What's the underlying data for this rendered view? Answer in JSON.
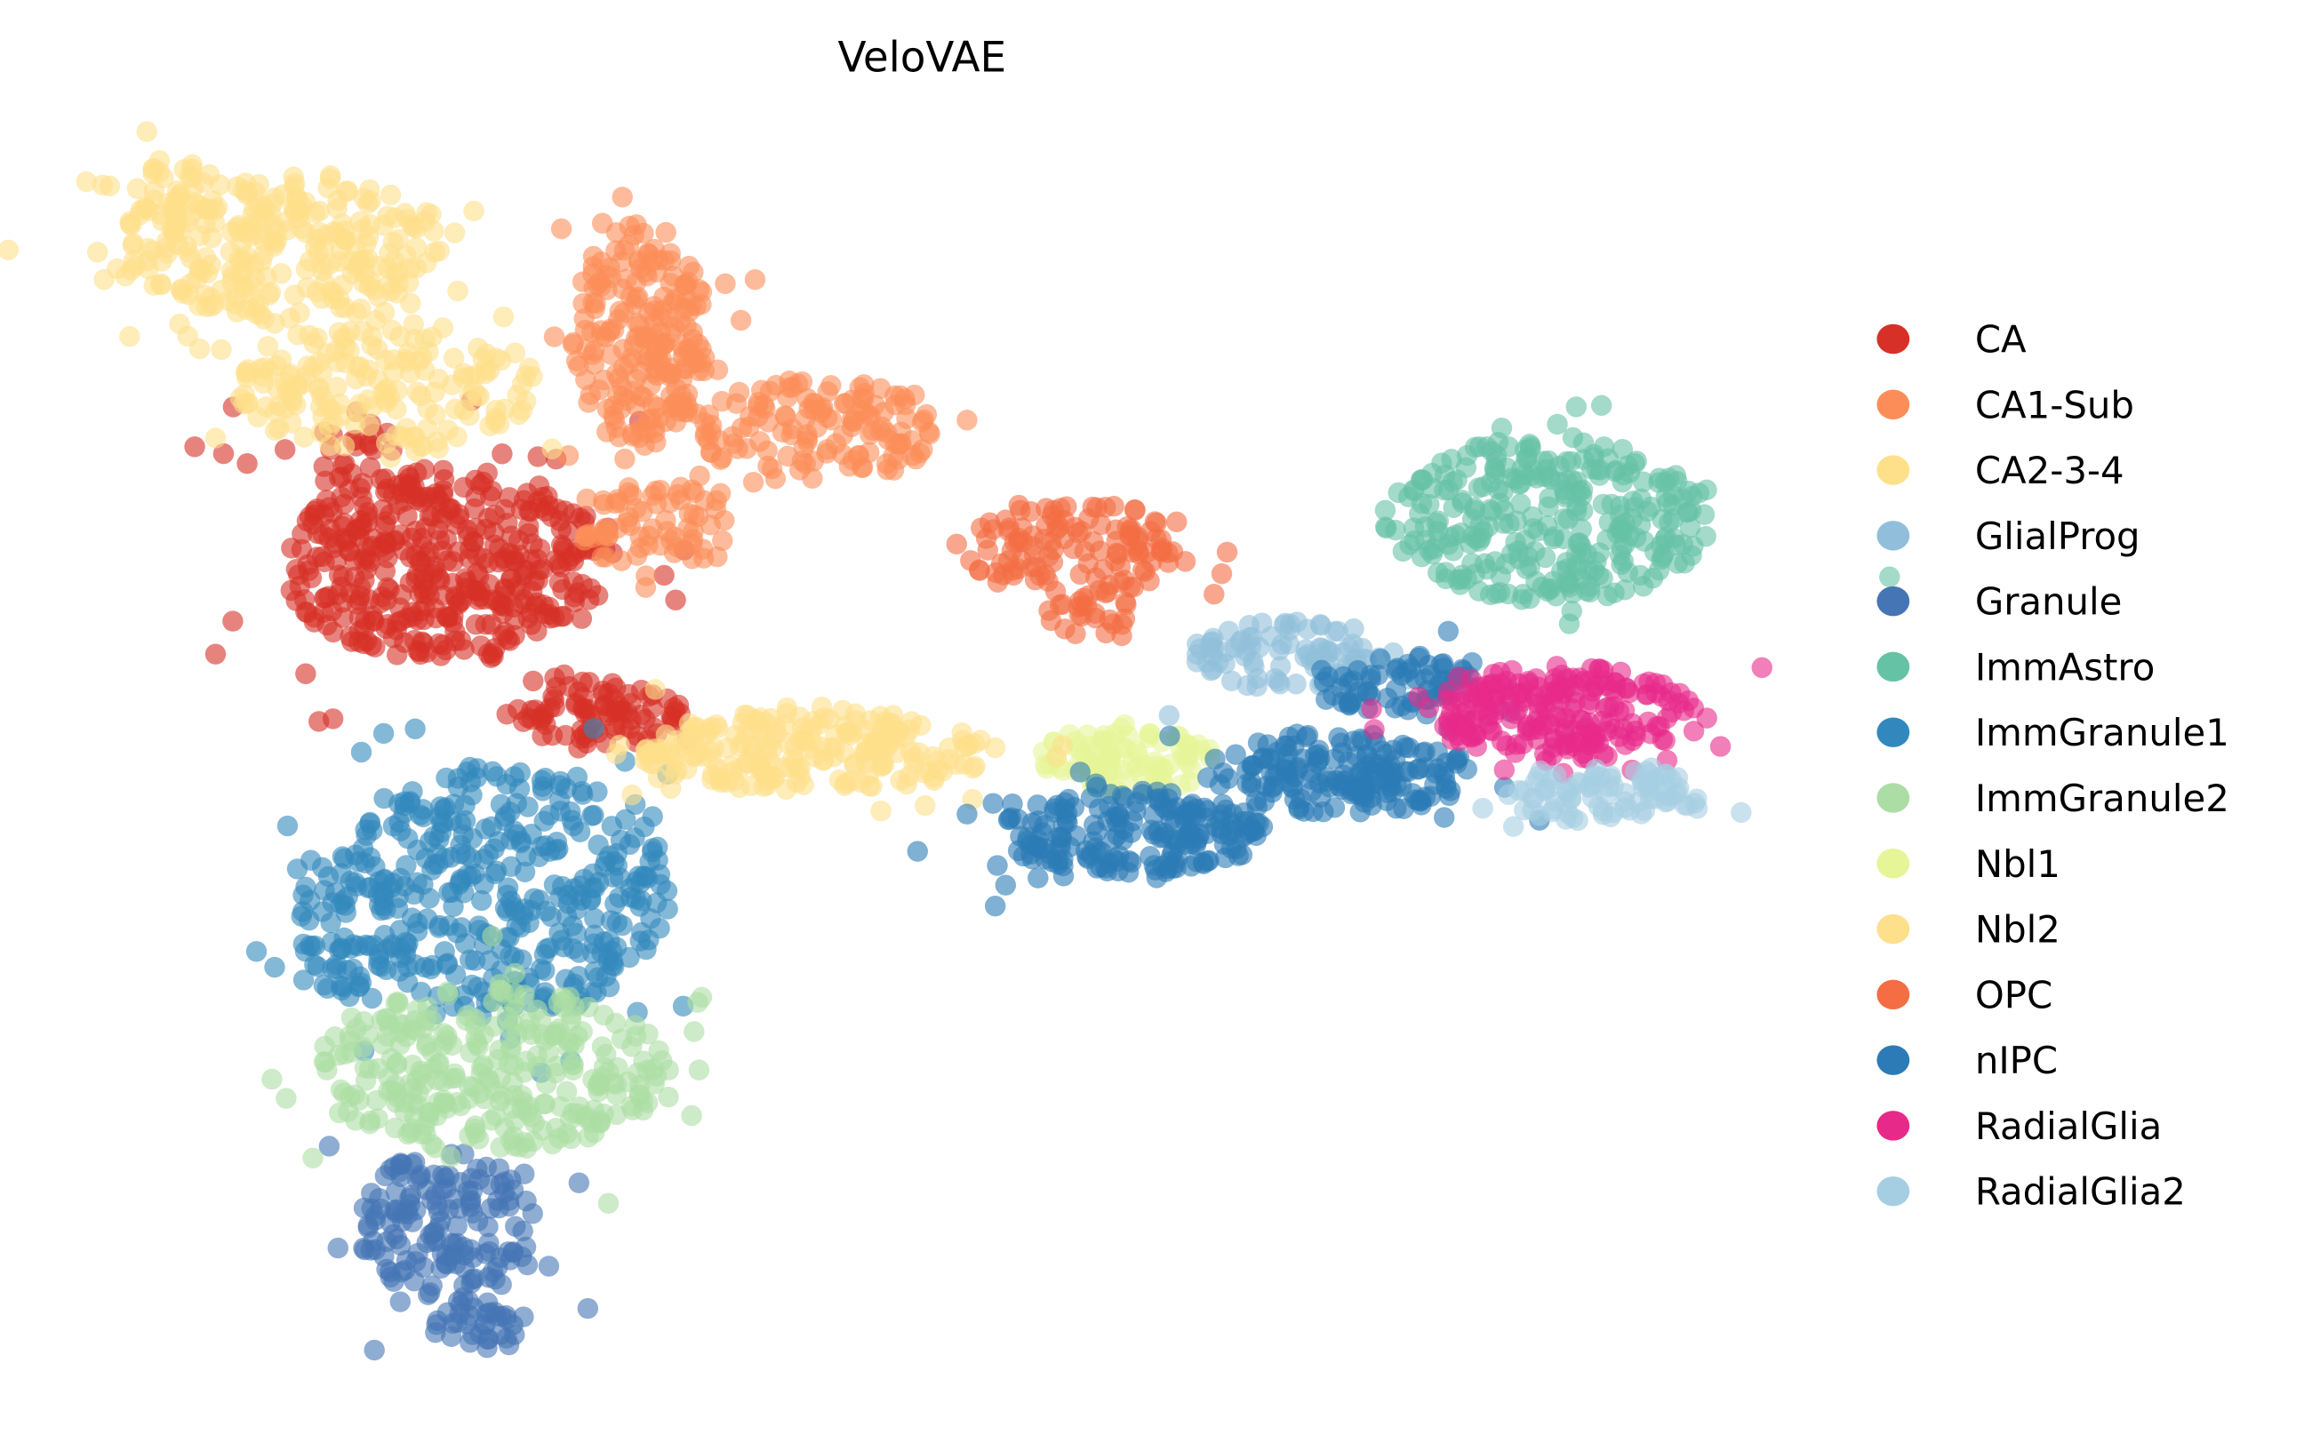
{
  "chart_data": {
    "type": "scatter",
    "title": "VeloVAE",
    "xlabel": "",
    "ylabel": "",
    "xlim": [
      0,
      110
    ],
    "ylim": [
      0,
      85
    ],
    "grid": false,
    "axes_visible": false,
    "legend_placement": "right",
    "point_opacity": 0.6,
    "note": "Embedding clusters summarised as point clouds: center (x,y), spread (sx,sy) in embedding units, and relative point count n",
    "series": [
      {
        "name": "CA",
        "color": "#d73027",
        "blobs": [
          {
            "x": 23,
            "y": 54.5,
            "sx": 11,
            "sy": 6.5,
            "n": 420
          },
          {
            "x": 33,
            "y": 44.5,
            "sx": 6,
            "sy": 2.2,
            "n": 90
          },
          {
            "x": 17,
            "y": 62,
            "sx": 3,
            "sy": 3,
            "n": 25
          }
        ]
      },
      {
        "name": "CA1-Sub",
        "color": "#fc8d59",
        "blobs": [
          {
            "x": 36,
            "y": 70,
            "sx": 4.5,
            "sy": 7.5,
            "n": 220
          },
          {
            "x": 48,
            "y": 63.5,
            "sx": 8,
            "sy": 3.5,
            "n": 140
          },
          {
            "x": 37,
            "y": 57,
            "sx": 5,
            "sy": 3,
            "n": 70
          }
        ]
      },
      {
        "name": "CA2-3-4",
        "color": "#fee08b",
        "blobs": [
          {
            "x": 12,
            "y": 76,
            "sx": 11,
            "sy": 5,
            "n": 260
          },
          {
            "x": 19,
            "y": 66.5,
            "sx": 10,
            "sy": 4.5,
            "n": 180
          },
          {
            "x": 5,
            "y": 79,
            "sx": 3,
            "sy": 3,
            "n": 40
          }
        ]
      },
      {
        "name": "GlialProg",
        "color": "#91bfdb",
        "blobs": [
          {
            "x": 79,
            "y": 48.5,
            "sx": 6,
            "sy": 2.3,
            "n": 90
          }
        ]
      },
      {
        "name": "Granule",
        "color": "#4575b4",
        "blobs": [
          {
            "x": 23,
            "y": 10,
            "sx": 6,
            "sy": 5,
            "n": 160
          },
          {
            "x": 25,
            "y": 3.5,
            "sx": 3,
            "sy": 2,
            "n": 35
          }
        ]
      },
      {
        "name": "ImmAstro",
        "color": "#66c2a5",
        "blobs": [
          {
            "x": 97,
            "y": 57.5,
            "sx": 11,
            "sy": 5.5,
            "n": 300
          }
        ]
      },
      {
        "name": "ImmGranule1",
        "color": "#3288bd",
        "blobs": [
          {
            "x": 27,
            "y": 32.5,
            "sx": 11,
            "sy": 8.5,
            "n": 380
          },
          {
            "x": 16,
            "y": 30.5,
            "sx": 3,
            "sy": 5.5,
            "n": 60
          }
        ]
      },
      {
        "name": "ImmGranule2",
        "color": "#abdda4",
        "blobs": [
          {
            "x": 26,
            "y": 20.5,
            "sx": 12,
            "sy": 5.5,
            "n": 300
          }
        ]
      },
      {
        "name": "Nbl1",
        "color": "#e6f598",
        "blobs": [
          {
            "x": 69,
            "y": 41.5,
            "sx": 6,
            "sy": 2.3,
            "n": 90
          }
        ]
      },
      {
        "name": "Nbl2",
        "color": "#fedf8b",
        "blobs": [
          {
            "x": 48,
            "y": 42,
            "sx": 12,
            "sy": 2.8,
            "n": 230
          }
        ]
      },
      {
        "name": "OPC",
        "color": "#f46d43",
        "blobs": [
          {
            "x": 65,
            "y": 55.5,
            "sx": 7,
            "sy": 3.5,
            "n": 120
          },
          {
            "x": 66,
            "y": 51.5,
            "sx": 3,
            "sy": 2,
            "n": 25
          }
        ]
      },
      {
        "name": "nIPC",
        "color": "#2c7bb6",
        "blobs": [
          {
            "x": 69,
            "y": 36.5,
            "sx": 9,
            "sy": 2.8,
            "n": 200
          },
          {
            "x": 83,
            "y": 40.5,
            "sx": 9,
            "sy": 2.8,
            "n": 180
          },
          {
            "x": 87,
            "y": 46.5,
            "sx": 5,
            "sy": 2,
            "n": 70
          }
        ]
      },
      {
        "name": "RadialGlia",
        "color": "#e7298a",
        "blobs": [
          {
            "x": 98,
            "y": 44.5,
            "sx": 9,
            "sy": 3.2,
            "n": 220
          }
        ]
      },
      {
        "name": "RadialGlia2",
        "color": "#a6cee3",
        "blobs": [
          {
            "x": 101,
            "y": 39,
            "sx": 7,
            "sy": 1.8,
            "n": 90
          }
        ]
      }
    ]
  }
}
